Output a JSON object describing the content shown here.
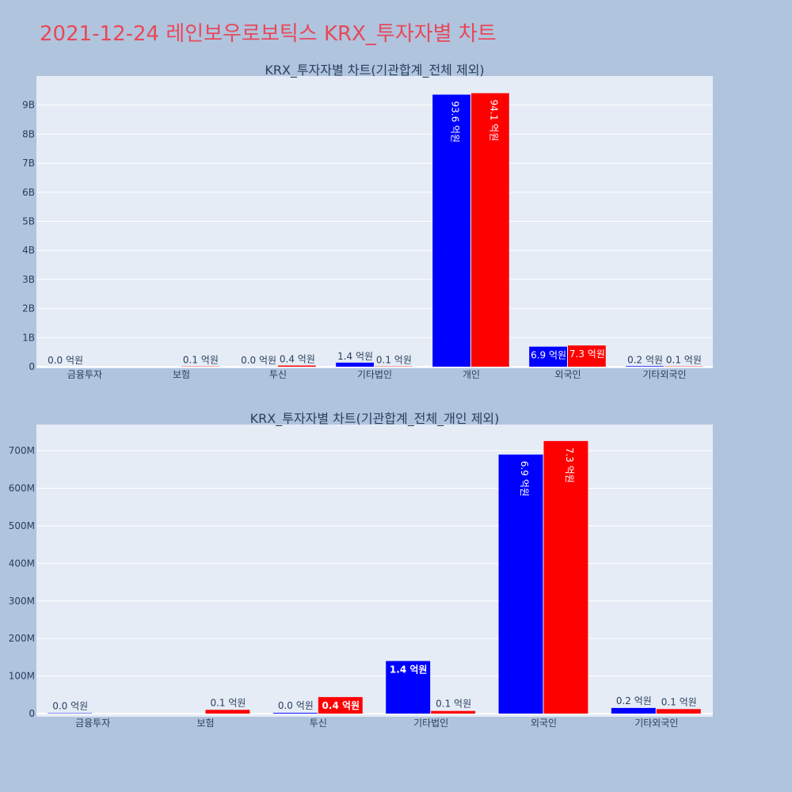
{
  "page": {
    "title": "2021-12-24 레인보우로보틱스 KRX_투자자별 차트"
  },
  "chart_data": [
    {
      "type": "bar",
      "title": "KRX_투자자별 차트(기관합계_전체 제외)",
      "categories": [
        "금융투자",
        "보험",
        "투신",
        "기타법인",
        "개인",
        "외국인",
        "기타외국인"
      ],
      "series": [
        {
          "color": "#0000ff",
          "values": [
            1000000,
            0,
            2000000,
            140000000,
            9360000000,
            690000000,
            20000000
          ],
          "labels": [
            "0.0 억원",
            "",
            "0.0 억원",
            "1.4 억원",
            "93.6 억원",
            "6.9 억원",
            "0.2 억원"
          ]
        },
        {
          "color": "#ff0000",
          "values": [
            0,
            10000000,
            40000000,
            10000000,
            9410000000,
            730000000,
            10000000
          ],
          "labels": [
            "",
            "0.1 억원",
            "0.4 억원",
            "0.1 억원",
            "94.1 억원",
            "7.3 억원",
            "0.1 억원"
          ]
        }
      ],
      "yticks": [
        0,
        1000000000,
        2000000000,
        3000000000,
        4000000000,
        5000000000,
        6000000000,
        7000000000,
        8000000000,
        9000000000
      ],
      "ytick_labels": [
        "0",
        "1B",
        "2B",
        "3B",
        "4B",
        "5B",
        "6B",
        "7B",
        "8B",
        "9B"
      ],
      "ylim": [
        0,
        10000000000
      ],
      "grid": true,
      "legend": "none"
    },
    {
      "type": "bar",
      "title": "KRX_투자자별 차트(기관합계_전체_개인 제외)",
      "categories": [
        "금융투자",
        "보험",
        "투신",
        "기타법인",
        "외국인",
        "기타외국인"
      ],
      "series": [
        {
          "color": "#0000ff",
          "values": [
            1000000,
            0,
            2000000,
            140000000,
            690000000,
            15000000
          ],
          "labels": [
            "0.0 억원",
            "",
            "0.0 억원",
            "1.4 억원",
            "6.9 억원",
            "0.2 억원"
          ]
        },
        {
          "color": "#ff0000",
          "values": [
            0,
            10000000,
            44000000,
            7000000,
            726000000,
            12000000
          ],
          "labels": [
            "",
            "0.1 억원",
            "0.4 억원",
            "0.1 억원",
            "7.3 억원",
            "0.1 억원"
          ]
        }
      ],
      "yticks": [
        0,
        100000000,
        200000000,
        300000000,
        400000000,
        500000000,
        600000000,
        700000000
      ],
      "ytick_labels": [
        "0",
        "100M",
        "200M",
        "300M",
        "400M",
        "500M",
        "600M",
        "700M"
      ],
      "ylim": [
        0,
        770000000
      ],
      "grid": true,
      "legend": "none"
    }
  ]
}
